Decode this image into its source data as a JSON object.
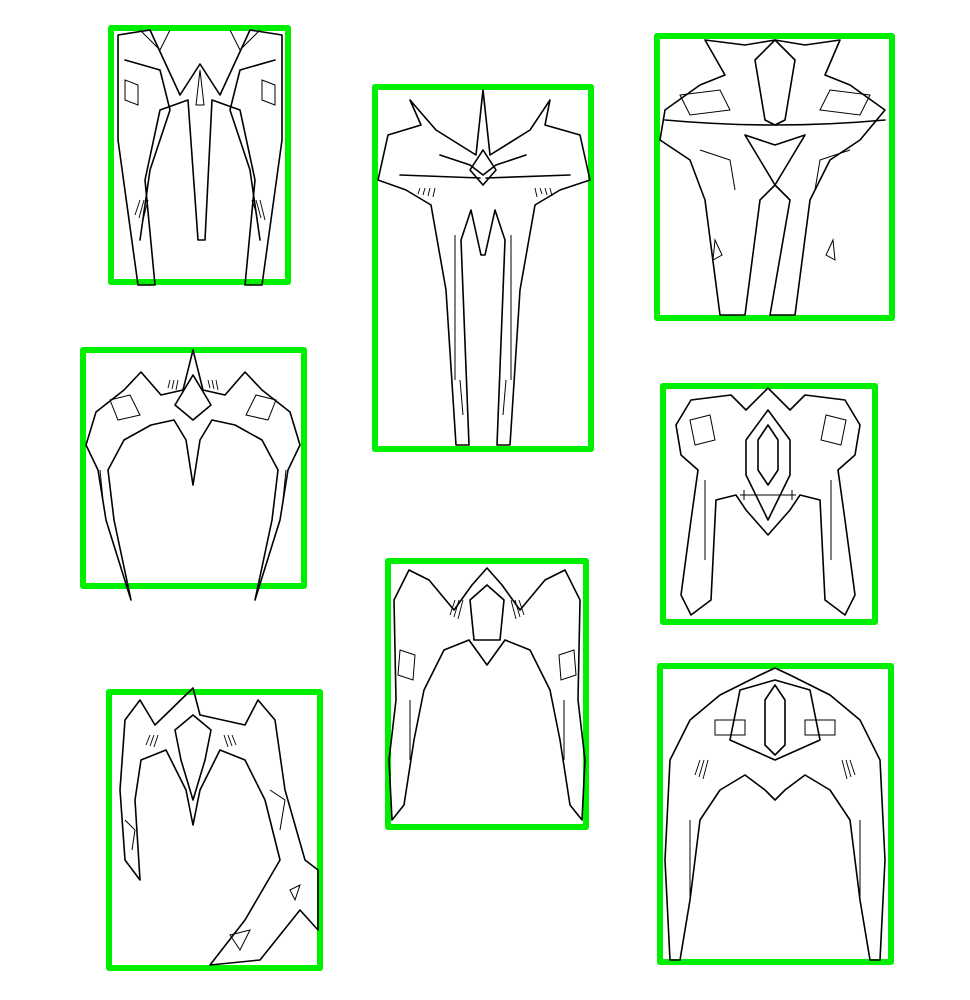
{
  "image": {
    "background_color": "#ffffff",
    "box_color": "#00ee00",
    "line_color": "#000000",
    "box_count": 8
  },
  "boxes": [
    {
      "id": 1,
      "subject": "spaceship-line-art"
    },
    {
      "id": 2,
      "subject": "spaceship-line-art"
    },
    {
      "id": 3,
      "subject": "spaceship-line-art"
    },
    {
      "id": 4,
      "subject": "spaceship-line-art"
    },
    {
      "id": 5,
      "subject": "spaceship-line-art"
    },
    {
      "id": 6,
      "subject": "spaceship-line-art"
    },
    {
      "id": 7,
      "subject": "spaceship-line-art"
    },
    {
      "id": 8,
      "subject": "spaceship-line-art"
    }
  ]
}
